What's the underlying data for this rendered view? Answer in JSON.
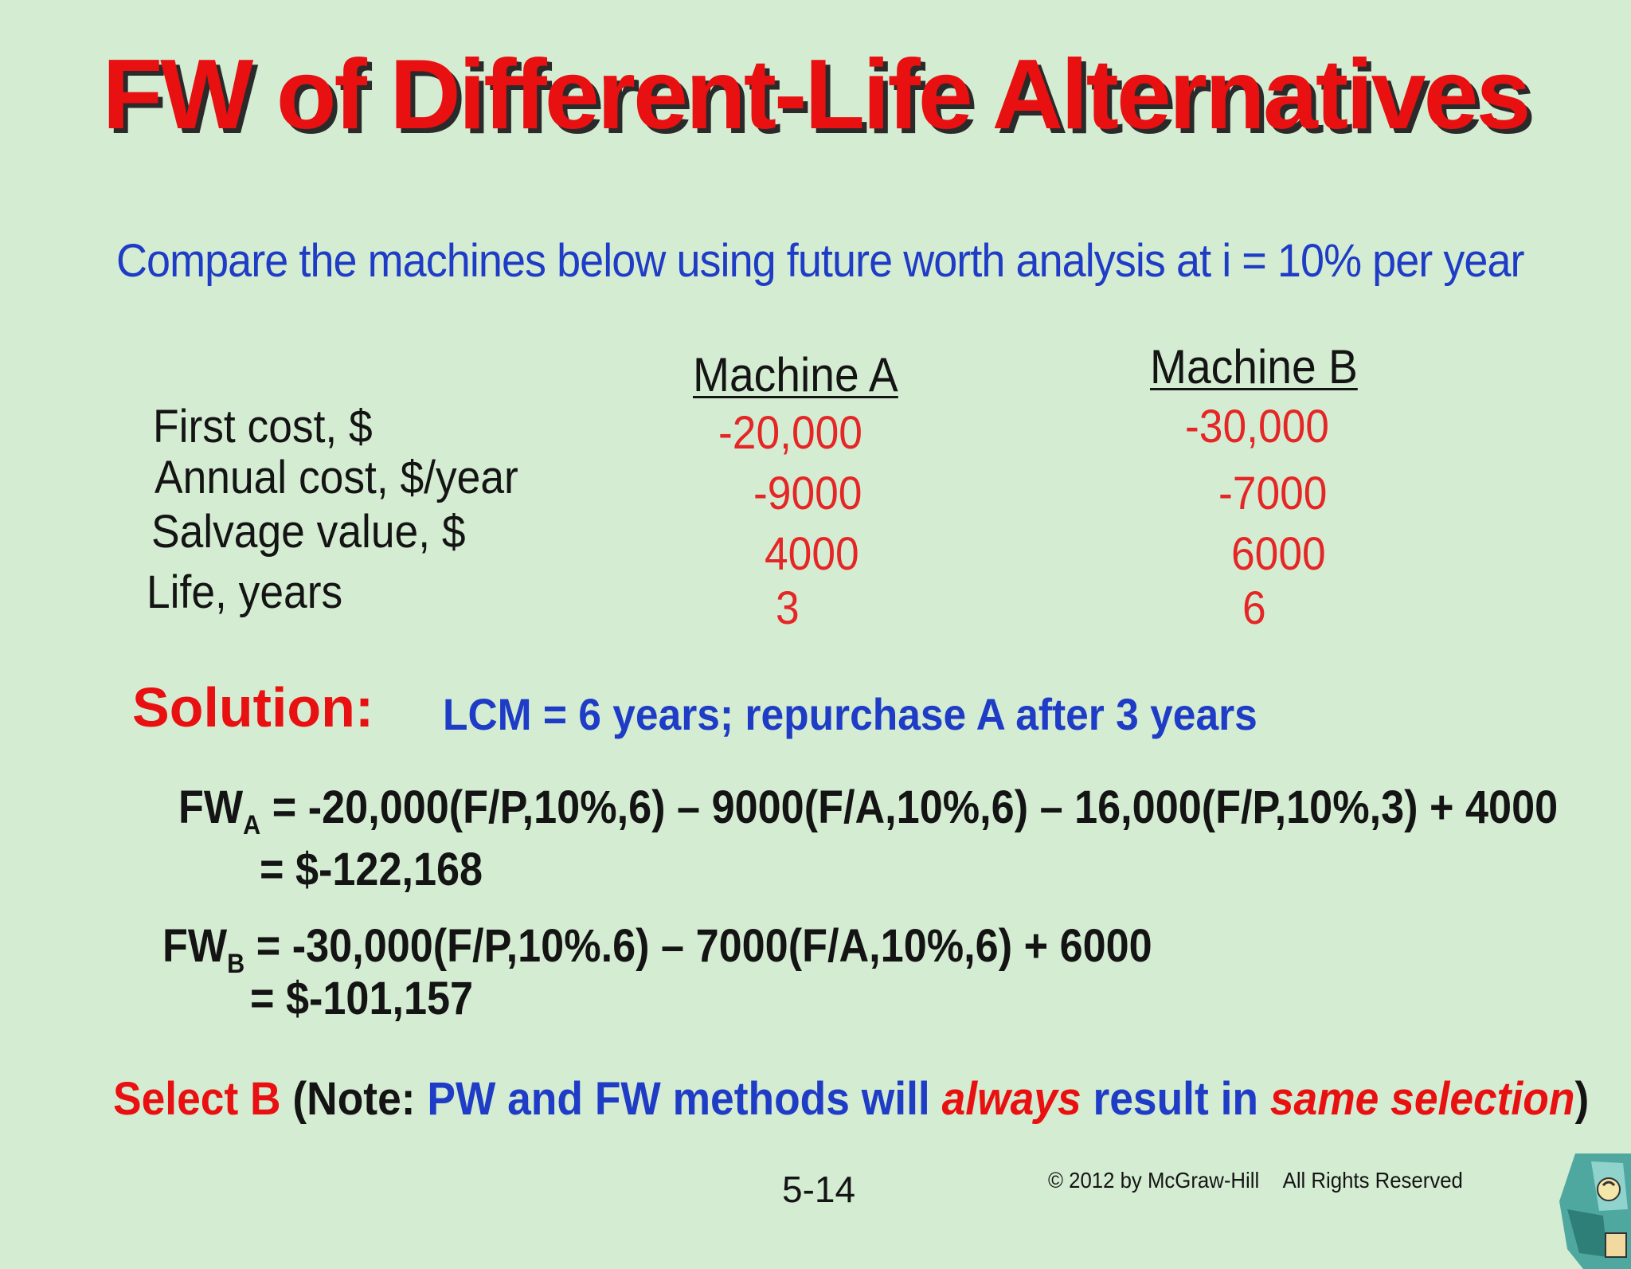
{
  "title": "FW of Different-Life Alternatives",
  "prompt": "Compare the machines below using future worth analysis at i = 10% per year",
  "table": {
    "columns": [
      "Machine A",
      "Machine B"
    ],
    "rows": [
      {
        "label": "First cost, $",
        "a": "-20,000",
        "b": "-30,000"
      },
      {
        "label": "Annual cost, $/year",
        "a": "-9000",
        "b": "-7000"
      },
      {
        "label": "Salvage value, $",
        "a": "4000",
        "b": "6000"
      },
      {
        "label": "Life, years",
        "a": "3",
        "b": "6"
      }
    ]
  },
  "solution": {
    "label": "Solution:",
    "text": "LCM = 6 years; repurchase A after 3 years"
  },
  "equations": {
    "fwa": {
      "base": "FW",
      "sub": "A",
      "expr": " = -20,000(F/P,10%,6)  – 9000(F/A,10%,6) – 16,000(F/P,10%,3) + 4000",
      "result": "= $-122,168"
    },
    "fwb": {
      "base": "FW",
      "sub": "B",
      "expr": " = -30,000(F/P,10%.6) – 7000(F/A,10%,6) + 6000",
      "result": "= $-101,157"
    }
  },
  "conclusion": {
    "select": "Select B",
    "open": " (Note: ",
    "p1": "PW and FW methods will ",
    "p2": "always",
    "p3": " result in ",
    "p4": "same selection",
    "close": ")"
  },
  "footer": {
    "page": "5-14",
    "copyright": "© 2012 by McGraw-Hill",
    "rights": "All Rights Reserved"
  },
  "colors": {
    "background": "#d4ecd2",
    "title": "#e81010",
    "accent_blue": "#1e3cc6",
    "value_red": "#e52626"
  },
  "icons": {
    "corner": "corner-decoration-icon"
  }
}
